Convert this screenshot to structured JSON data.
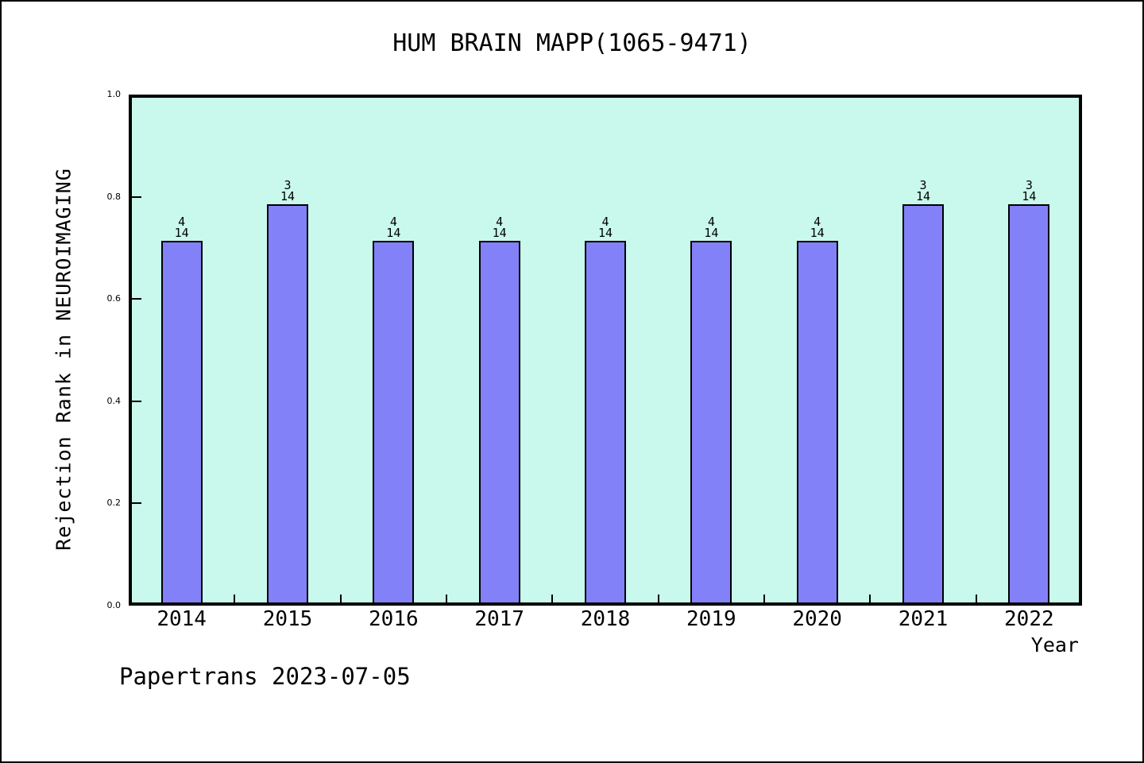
{
  "title": "HUM BRAIN MAPP(1065-9471)",
  "footer": "Papertrans 2023-07-05",
  "x_axis_label": "Year",
  "y_axis_label": "Rejection Rank in NEUROIMAGING",
  "y_tick_labels": [
    "0.0",
    "0.2",
    "0.4",
    "0.6",
    "0.8",
    "1.0"
  ],
  "chart_data": {
    "type": "bar",
    "title": "HUM BRAIN MAPP(1065-9471)",
    "xlabel": "Year",
    "ylabel": "Rejection Rank in NEUROIMAGING",
    "categories": [
      "2014",
      "2015",
      "2016",
      "2017",
      "2018",
      "2019",
      "2020",
      "2021",
      "2022"
    ],
    "values": [
      0.7143,
      0.7857,
      0.7143,
      0.7143,
      0.7143,
      0.7143,
      0.7143,
      0.7857,
      0.7857
    ],
    "bar_labels": [
      [
        "4",
        "14"
      ],
      [
        "3",
        "14"
      ],
      [
        "4",
        "14"
      ],
      [
        "4",
        "14"
      ],
      [
        "4",
        "14"
      ],
      [
        "4",
        "14"
      ],
      [
        "4",
        "14"
      ],
      [
        "3",
        "14"
      ],
      [
        "3",
        "14"
      ]
    ],
    "ylim": [
      0,
      1
    ],
    "yticks": [
      0.0,
      0.2,
      0.4,
      0.6,
      0.8,
      1.0
    ],
    "grid": false,
    "legend": "none",
    "colors": {
      "bar_fill": "#8281f8",
      "bar_border": "#000000",
      "plot_bg": "#c9f9ec",
      "frame": "#000000",
      "text": "#000000",
      "canvas_bg": "#ffffff"
    }
  }
}
